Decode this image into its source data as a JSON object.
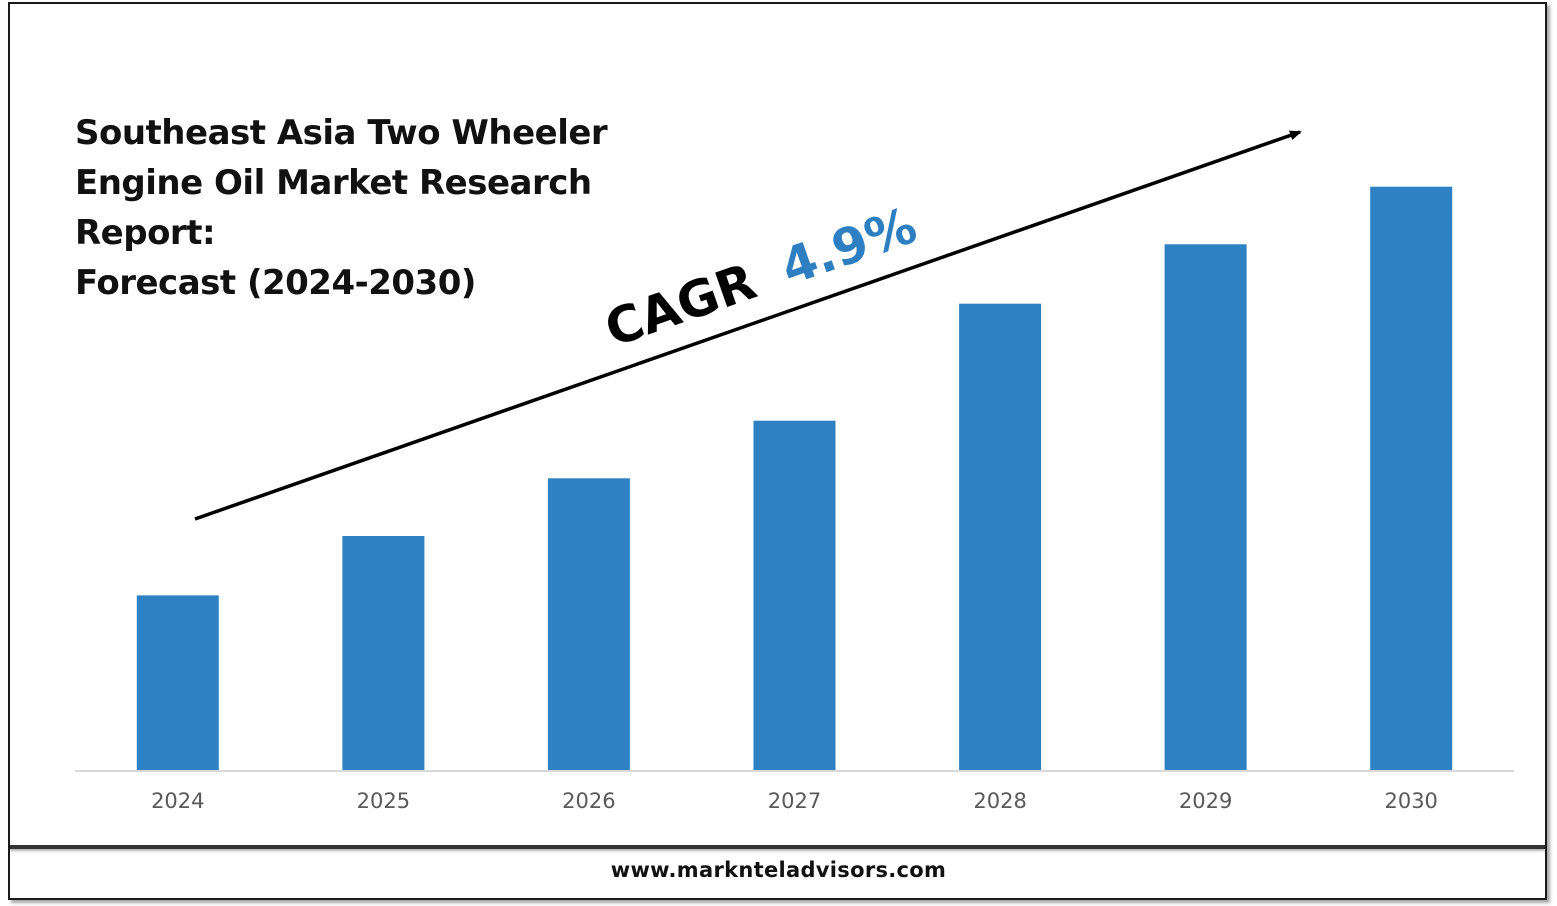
{
  "title_lines": [
    "Southeast Asia Two Wheeler",
    "Engine Oil Market Research",
    "Report:",
    "Forecast (2024-2030)"
  ],
  "cagr": {
    "label": "CAGR",
    "value": "4.9%",
    "label_color": "#000000",
    "value_color": "#2e7fc1"
  },
  "footer": {
    "url": "www.marknteladvisors.com"
  },
  "chart_data": {
    "type": "bar",
    "categories": [
      "2024",
      "2025",
      "2026",
      "2027",
      "2028",
      "2029",
      "2030"
    ],
    "values": [
      1.0,
      1.34,
      1.67,
      2.0,
      2.67,
      3.01,
      3.34
    ],
    "ylim": [
      0,
      3.55
    ],
    "bar_color": "#2e82c3",
    "grid": false,
    "legend": "none",
    "annotation": "CAGR 4.9%"
  }
}
